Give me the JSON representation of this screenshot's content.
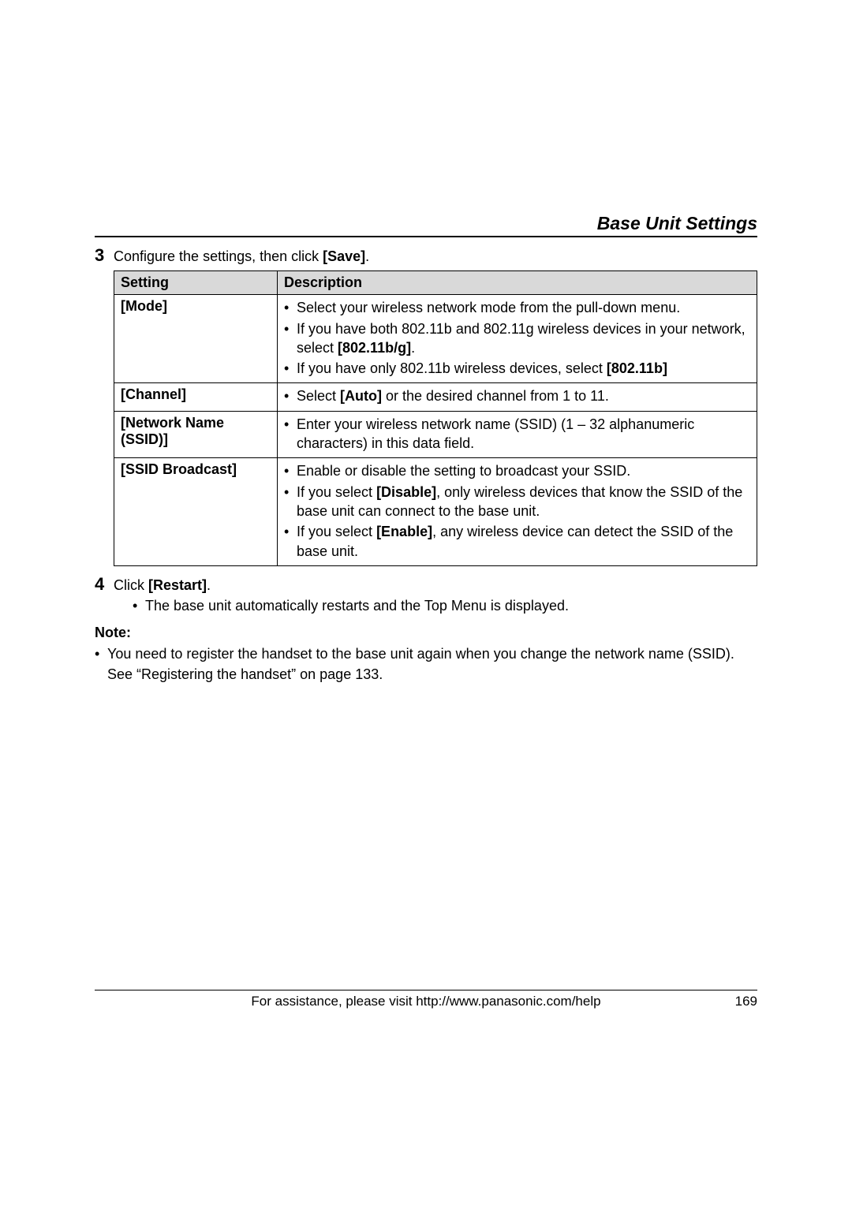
{
  "header": {
    "section_title": "Base Unit Settings"
  },
  "step3": {
    "num": "3",
    "text_prefix": "Configure the settings, then click ",
    "save_label": "[Save]",
    "text_suffix": "."
  },
  "table": {
    "col_setting": "Setting",
    "col_desc": "Description",
    "rows": [
      {
        "setting": "[Mode]",
        "items": [
          {
            "parts": [
              {
                "t": "Select your wireless network mode from the pull-down menu."
              }
            ]
          },
          {
            "parts": [
              {
                "t": "If you have both 802.11b and 802.11g wireless devices in your network, select "
              },
              {
                "t": "[802.11b/g]",
                "b": true
              },
              {
                "t": "."
              }
            ]
          },
          {
            "parts": [
              {
                "t": "If you have only 802.11b wireless devices, select "
              },
              {
                "t": "[802.11b]",
                "b": true
              }
            ]
          }
        ]
      },
      {
        "setting": "[Channel]",
        "items": [
          {
            "parts": [
              {
                "t": "Select "
              },
              {
                "t": "[Auto]",
                "b": true
              },
              {
                "t": " or the desired channel from 1 to 11."
              }
            ]
          }
        ]
      },
      {
        "setting": "[Network Name (SSID)]",
        "items": [
          {
            "parts": [
              {
                "t": "Enter your wireless network name (SSID) (1 – 32 alphanumeric characters) in this data field."
              }
            ]
          }
        ]
      },
      {
        "setting": "[SSID Broadcast]",
        "items": [
          {
            "parts": [
              {
                "t": "Enable or disable the setting to broadcast your SSID."
              }
            ]
          },
          {
            "parts": [
              {
                "t": "If you select "
              },
              {
                "t": "[Disable]",
                "b": true
              },
              {
                "t": ", only wireless devices that know the SSID of the base unit can connect to the base unit."
              }
            ]
          },
          {
            "parts": [
              {
                "t": "If you select "
              },
              {
                "t": "[Enable]",
                "b": true
              },
              {
                "t": ", any wireless device can detect the SSID of the base unit."
              }
            ]
          }
        ]
      }
    ]
  },
  "step4": {
    "num": "4",
    "text_prefix": "Click ",
    "restart_label": "[Restart]",
    "text_suffix": ".",
    "sub_bullet": "The base unit automatically restarts and the Top Menu is displayed."
  },
  "note": {
    "label": "Note:",
    "text": "You need to register the handset to the base unit again when you change the network name (SSID). See “Registering the handset” on page 133."
  },
  "footer": {
    "assist": "For assistance, please visit http://www.panasonic.com/help",
    "page": "169"
  }
}
